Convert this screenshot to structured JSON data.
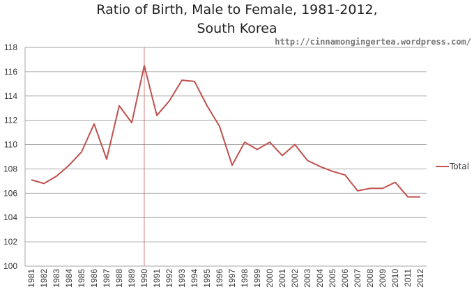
{
  "chart_data": {
    "type": "line",
    "title_line1": "Ratio of Birth, Male to Female, 1981-2012,",
    "title_line2": "South Korea",
    "xlabel": "",
    "ylabel": "",
    "ylim": [
      100,
      118
    ],
    "yticks": [
      "100",
      "102",
      "104",
      "106",
      "108",
      "110",
      "112",
      "114",
      "116",
      "118"
    ],
    "grid": true,
    "legend_position": "right",
    "categories": [
      "1981",
      "1982",
      "1983",
      "1984",
      "1985",
      "1986",
      "1987",
      "1988",
      "1989",
      "1990",
      "1991",
      "1992",
      "1993",
      "1994",
      "1995",
      "1996",
      "1997",
      "1998",
      "1999",
      "2000",
      "2001",
      "2002",
      "2003",
      "2004",
      "2005",
      "2006",
      "2007",
      "2008",
      "2009",
      "2010",
      "2011",
      "2012"
    ],
    "series": [
      {
        "name": "Total",
        "color": "#c0504d",
        "values": [
          107.1,
          106.8,
          107.4,
          108.3,
          109.4,
          111.7,
          108.8,
          113.2,
          111.8,
          116.5,
          112.4,
          113.6,
          115.3,
          115.2,
          113.2,
          111.5,
          108.3,
          110.2,
          109.6,
          110.2,
          109.1,
          110.0,
          108.7,
          108.2,
          107.8,
          107.5,
          106.2,
          106.4,
          106.4,
          106.9,
          105.7,
          105.7
        ]
      }
    ],
    "highlight_category": "1990",
    "highlight_color": "#c0504d"
  },
  "watermark": "http://cinnamongingertea.wordpress.com/"
}
